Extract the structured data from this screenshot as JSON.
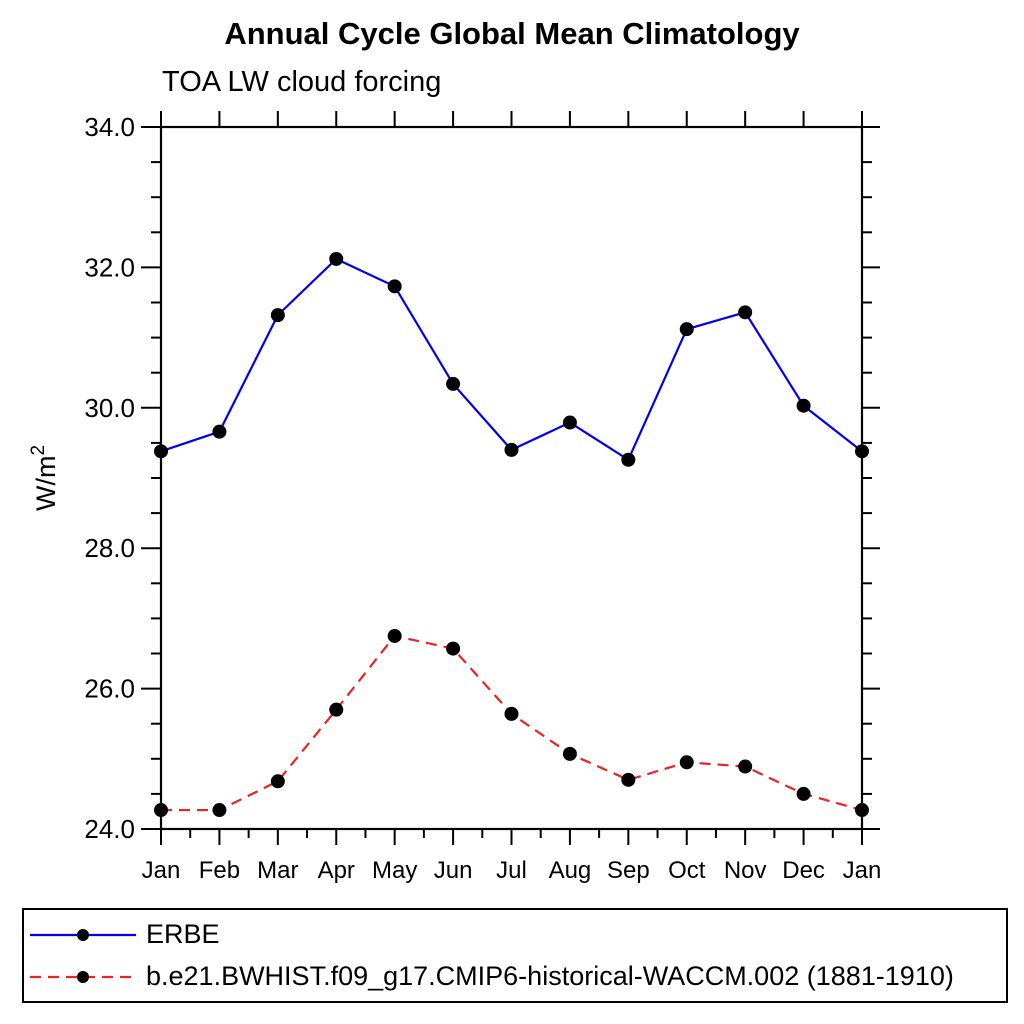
{
  "title": "Annual Cycle Global Mean Climatology",
  "subtitle": "TOA LW cloud forcing",
  "colors": {
    "axis": "#000000",
    "marker": "#000000",
    "series_blue": "#0000ee",
    "series_red": "#ee2222",
    "background": "#ffffff"
  },
  "chart_data": {
    "type": "line",
    "title": "Annual Cycle Global Mean Climatology",
    "subtitle": "TOA LW cloud forcing",
    "xlabel": "",
    "ylabel": {
      "base": "W/m",
      "sup": "2"
    },
    "ylim": [
      24.0,
      34.0
    ],
    "ytick_major": [
      24.0,
      26.0,
      28.0,
      30.0,
      32.0,
      34.0
    ],
    "ytick_labels": [
      "24.0",
      "26.0",
      "28.0",
      "30.0",
      "32.0",
      "34.0"
    ],
    "ytick_minor_step": 0.5,
    "xtick_minor_step": 0.5,
    "grid": false,
    "legend_position": "bottom",
    "categories": [
      "Jan",
      "Feb",
      "Mar",
      "Apr",
      "May",
      "Jun",
      "Jul",
      "Aug",
      "Sep",
      "Oct",
      "Nov",
      "Dec",
      "Jan"
    ],
    "series": [
      {
        "name": "ERBE",
        "color": "#0000ee",
        "style": "solid",
        "marker": "circle",
        "values": [
          29.38,
          29.66,
          31.32,
          32.12,
          31.73,
          30.34,
          29.4,
          29.79,
          29.26,
          31.12,
          31.36,
          30.03,
          29.38
        ]
      },
      {
        "name": "b.e21.BWHIST.f09_g17.CMIP6-historical-WACCM.002 (1881-1910)",
        "color": "#ee2222",
        "style": "dashed",
        "marker": "circle",
        "values": [
          24.27,
          24.27,
          24.68,
          25.7,
          26.75,
          26.57,
          25.64,
          25.07,
          24.7,
          24.95,
          24.89,
          24.5,
          24.27
        ]
      }
    ]
  }
}
